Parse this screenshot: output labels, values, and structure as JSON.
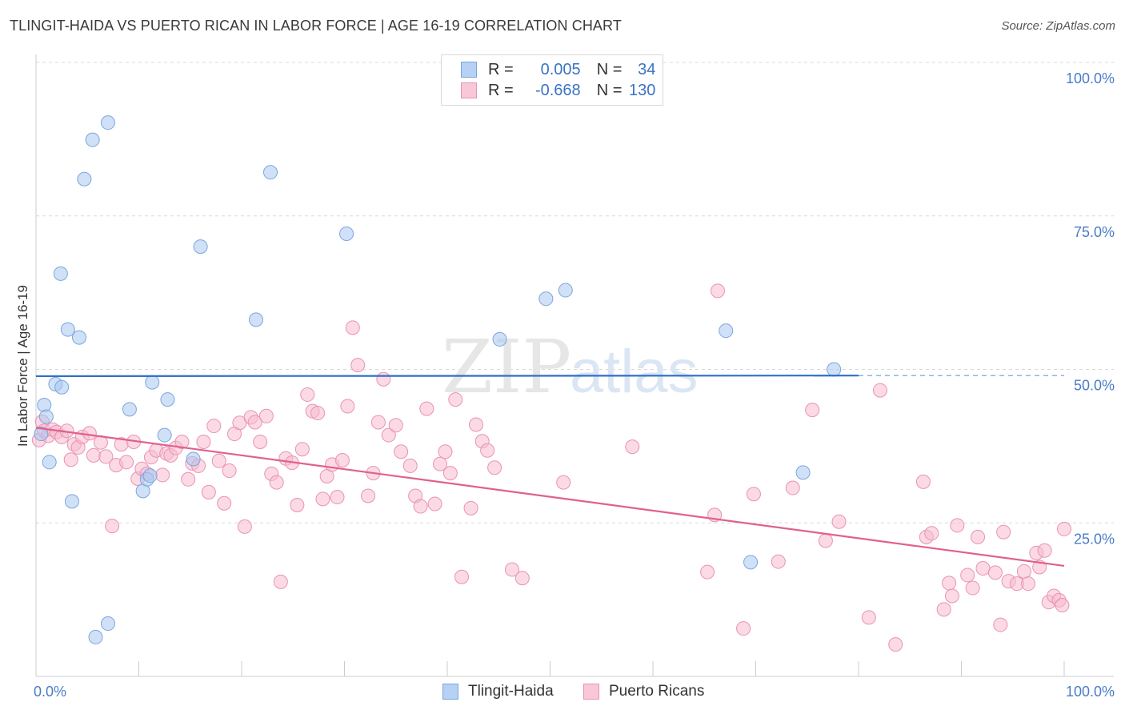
{
  "header": {
    "title": "TLINGIT-HAIDA VS PUERTO RICAN IN LABOR FORCE | AGE 16-19 CORRELATION CHART",
    "source": "Source: ZipAtlas.com"
  },
  "legend": {
    "rows": [
      {
        "r_label": "R =",
        "r_value": "0.005",
        "n_label": "N =",
        "n_value": "34"
      },
      {
        "r_label": "R =",
        "r_value": "-0.668",
        "n_label": "N =",
        "n_value": "130"
      }
    ]
  },
  "watermark": {
    "zip": "ZIP",
    "atlas": "atlas"
  },
  "colors": {
    "blue_fill": "#a9c8f0",
    "blue_stroke": "#7aa6de",
    "blue_line": "#2f6fc7",
    "pink_fill": "#f7bcd0",
    "pink_stroke": "#ea92b2",
    "pink_line": "#e0608e",
    "tick_label": "#4a7cc7",
    "grid": "#d9d9d9"
  },
  "chart_data": {
    "type": "scatter",
    "title": "TLINGIT-HAIDA VS PUERTO RICAN IN LABOR FORCE | AGE 16-19 CORRELATION CHART",
    "ylabel": "In Labor Force | Age 16-19",
    "xlabel": "",
    "xlim": [
      0,
      100
    ],
    "ylim": [
      0,
      100
    ],
    "x_tick_labels": [
      "0.0%",
      "100.0%"
    ],
    "y_ticks": [
      25,
      50,
      75,
      100
    ],
    "y_tick_labels": [
      "25.0%",
      "50.0%",
      "75.0%",
      "100.0%"
    ],
    "series": [
      {
        "name": "Tlingit-Haida",
        "color": "#a9c8f0",
        "r": 0.005,
        "n": 34,
        "trend": {
          "x0": 0,
          "y0": 48.9,
          "x1": 80,
          "y1": 49.0,
          "dashed_to": 100
        },
        "points": [
          [
            0.5,
            39.5
          ],
          [
            0.8,
            44.2
          ],
          [
            1.0,
            42.3
          ],
          [
            1.3,
            34.9
          ],
          [
            1.9,
            47.6
          ],
          [
            2.5,
            47.1
          ],
          [
            2.4,
            65.6
          ],
          [
            3.1,
            56.5
          ],
          [
            3.5,
            28.5
          ],
          [
            4.2,
            55.2
          ],
          [
            4.7,
            81.0
          ],
          [
            5.5,
            87.4
          ],
          [
            5.8,
            6.4
          ],
          [
            7.0,
            8.6
          ],
          [
            7.0,
            90.2
          ],
          [
            9.1,
            43.5
          ],
          [
            10.4,
            30.2
          ],
          [
            10.8,
            32.1
          ],
          [
            11.1,
            32.7
          ],
          [
            11.3,
            47.9
          ],
          [
            12.5,
            39.3
          ],
          [
            12.8,
            45.1
          ],
          [
            15.3,
            35.4
          ],
          [
            16.0,
            70.0
          ],
          [
            21.4,
            58.1
          ],
          [
            22.8,
            82.1
          ],
          [
            30.2,
            72.1
          ],
          [
            45.1,
            54.9
          ],
          [
            49.6,
            61.5
          ],
          [
            51.5,
            62.9
          ],
          [
            67.1,
            56.3
          ],
          [
            69.5,
            18.6
          ],
          [
            74.6,
            33.2
          ],
          [
            77.6,
            50.0
          ]
        ]
      },
      {
        "name": "Puerto Ricans",
        "color": "#f7bcd0",
        "r": -0.668,
        "n": 130,
        "trend": {
          "x0": 0,
          "y0": 40.5,
          "x1": 100,
          "y1": 18.0
        },
        "points": [
          [
            0.3,
            38.5
          ],
          [
            0.6,
            41.5
          ],
          [
            0.8,
            40.0
          ],
          [
            1.2,
            39.2
          ],
          [
            1.6,
            40.2
          ],
          [
            2.0,
            39.8
          ],
          [
            2.5,
            39.0
          ],
          [
            3.0,
            40.0
          ],
          [
            3.4,
            35.3
          ],
          [
            3.7,
            37.8
          ],
          [
            4.1,
            37.3
          ],
          [
            4.5,
            39.0
          ],
          [
            5.2,
            39.6
          ],
          [
            5.6,
            36.0
          ],
          [
            6.3,
            38.1
          ],
          [
            6.8,
            35.8
          ],
          [
            7.4,
            24.5
          ],
          [
            7.8,
            34.4
          ],
          [
            8.3,
            37.8
          ],
          [
            8.8,
            34.9
          ],
          [
            9.5,
            38.2
          ],
          [
            9.9,
            32.2
          ],
          [
            10.3,
            33.8
          ],
          [
            10.8,
            33.0
          ],
          [
            11.2,
            35.7
          ],
          [
            11.7,
            36.8
          ],
          [
            12.3,
            32.8
          ],
          [
            12.7,
            36.3
          ],
          [
            13.1,
            36.0
          ],
          [
            13.6,
            37.2
          ],
          [
            14.2,
            38.2
          ],
          [
            14.8,
            32.1
          ],
          [
            15.2,
            34.7
          ],
          [
            15.8,
            34.3
          ],
          [
            16.3,
            38.2
          ],
          [
            16.8,
            30.0
          ],
          [
            17.3,
            40.8
          ],
          [
            17.8,
            35.1
          ],
          [
            18.3,
            28.2
          ],
          [
            18.8,
            33.5
          ],
          [
            19.3,
            39.5
          ],
          [
            19.8,
            41.3
          ],
          [
            20.3,
            24.4
          ],
          [
            20.9,
            42.2
          ],
          [
            21.3,
            41.4
          ],
          [
            21.8,
            38.2
          ],
          [
            22.4,
            42.4
          ],
          [
            22.9,
            33.0
          ],
          [
            23.4,
            31.6
          ],
          [
            23.8,
            15.4
          ],
          [
            24.3,
            35.5
          ],
          [
            24.9,
            34.8
          ],
          [
            25.4,
            27.9
          ],
          [
            25.9,
            37.0
          ],
          [
            26.4,
            45.9
          ],
          [
            26.9,
            43.2
          ],
          [
            27.4,
            42.9
          ],
          [
            27.9,
            28.9
          ],
          [
            28.3,
            32.6
          ],
          [
            28.8,
            34.5
          ],
          [
            29.3,
            29.2
          ],
          [
            29.8,
            35.2
          ],
          [
            30.3,
            44.0
          ],
          [
            30.8,
            56.8
          ],
          [
            31.3,
            50.7
          ],
          [
            32.3,
            29.4
          ],
          [
            32.8,
            33.1
          ],
          [
            33.3,
            41.4
          ],
          [
            33.8,
            48.4
          ],
          [
            34.3,
            39.3
          ],
          [
            35.0,
            40.9
          ],
          [
            35.5,
            36.6
          ],
          [
            36.4,
            34.3
          ],
          [
            36.9,
            29.4
          ],
          [
            37.4,
            27.7
          ],
          [
            38.0,
            43.6
          ],
          [
            38.8,
            28.1
          ],
          [
            39.3,
            34.6
          ],
          [
            39.8,
            36.6
          ],
          [
            40.3,
            33.1
          ],
          [
            40.8,
            45.1
          ],
          [
            41.4,
            16.2
          ],
          [
            42.3,
            27.4
          ],
          [
            42.8,
            41.0
          ],
          [
            43.4,
            38.3
          ],
          [
            43.9,
            36.8
          ],
          [
            44.6,
            34.0
          ],
          [
            46.3,
            17.4
          ],
          [
            47.3,
            16.0
          ],
          [
            51.3,
            31.6
          ],
          [
            58.0,
            37.4
          ],
          [
            65.3,
            17.0
          ],
          [
            66.0,
            26.3
          ],
          [
            66.3,
            62.8
          ],
          [
            68.8,
            7.8
          ],
          [
            69.8,
            29.7
          ],
          [
            72.2,
            18.7
          ],
          [
            73.6,
            30.7
          ],
          [
            75.5,
            43.4
          ],
          [
            76.8,
            22.1
          ],
          [
            78.1,
            25.2
          ],
          [
            81.0,
            9.6
          ],
          [
            82.1,
            46.6
          ],
          [
            83.6,
            5.2
          ],
          [
            86.3,
            31.7
          ],
          [
            86.6,
            22.7
          ],
          [
            87.1,
            23.3
          ],
          [
            88.3,
            10.9
          ],
          [
            88.8,
            15.2
          ],
          [
            89.1,
            13.1
          ],
          [
            89.6,
            24.6
          ],
          [
            90.6,
            16.5
          ],
          [
            91.1,
            14.4
          ],
          [
            91.6,
            22.7
          ],
          [
            92.1,
            17.6
          ],
          [
            93.3,
            16.9
          ],
          [
            93.8,
            8.4
          ],
          [
            94.1,
            23.5
          ],
          [
            94.6,
            15.5
          ],
          [
            95.4,
            15.1
          ],
          [
            96.1,
            17.1
          ],
          [
            96.5,
            15.1
          ],
          [
            97.3,
            20.1
          ],
          [
            97.6,
            17.8
          ],
          [
            98.1,
            20.5
          ],
          [
            98.5,
            12.1
          ],
          [
            99.0,
            13.1
          ],
          [
            99.5,
            12.4
          ],
          [
            100.0,
            24.0
          ],
          [
            99.8,
            11.6
          ]
        ]
      }
    ]
  }
}
